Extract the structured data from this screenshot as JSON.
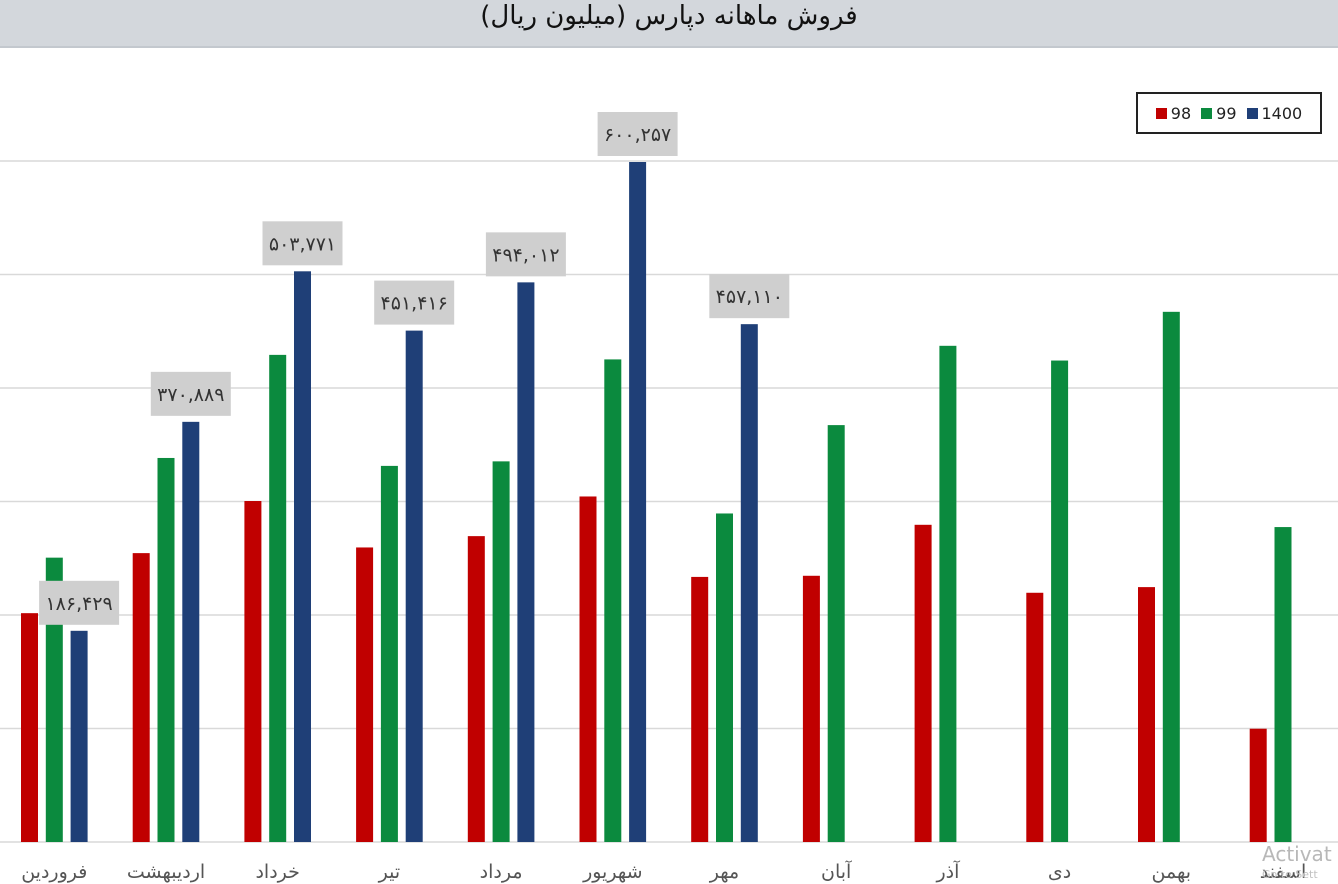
{
  "chart_data": {
    "type": "bar",
    "title": "فروش ماهانه دپارس (میلیون ریال)",
    "categories": [
      "فروردین",
      "اردیبهشت",
      "خرداد",
      "تیر",
      "مرداد",
      "شهریور",
      "مهر",
      "آبان",
      "آذر",
      "دی",
      "بهمن",
      "اسفند"
    ],
    "series": [
      {
        "name": "98",
        "color": "#c00000",
        "values": [
          202000,
          255000,
          301000,
          260000,
          270000,
          305000,
          234000,
          235000,
          280000,
          220000,
          225000,
          100000
        ]
      },
      {
        "name": "99",
        "color": "#0b8a3e",
        "values": [
          251000,
          339000,
          430000,
          332000,
          336000,
          426000,
          290000,
          368000,
          438000,
          425000,
          468000,
          278000
        ]
      },
      {
        "name": "1400",
        "color": "#1f3f77",
        "values": [
          186429,
          370889,
          503771,
          451416,
          494012,
          600257,
          457110,
          null,
          null,
          null,
          null,
          null
        ]
      }
    ],
    "data_labels": {
      "series": "1400",
      "texts": [
        "۱۸۶,۴۲۹",
        "۳۷۰,۸۸۹",
        "۵۰۳,۷۷۱",
        "۴۵۱,۴۱۶",
        "۴۹۴,۰۱۲",
        "۶۰۰,۲۵۷",
        "۴۵۷,۱۱۰",
        "",
        "",
        "",
        "",
        ""
      ]
    },
    "ylim": [
      0,
      600257
    ],
    "grid": true,
    "legend_position": "top-right",
    "xlabel": "",
    "ylabel": ""
  },
  "watermark": {
    "line1": "Activat",
    "line2": "Go to Sett"
  }
}
